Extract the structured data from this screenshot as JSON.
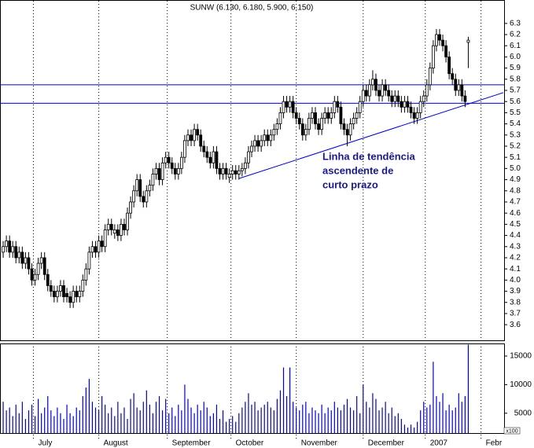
{
  "chart_data": {
    "type": "candlestick",
    "title": "SUNW (6.130, 6.180, 5.900, 6.150)",
    "open": [
      4.25,
      4.3,
      4.35,
      4.25,
      4.3,
      4.2,
      4.25,
      4.15,
      4.2,
      4.1,
      4.0,
      4.05,
      4.15,
      4.2,
      4.05,
      3.95,
      3.9,
      3.85,
      3.9,
      3.95,
      3.88,
      3.85,
      3.8,
      3.9,
      3.85,
      3.9,
      4.0,
      4.1,
      4.25,
      4.3,
      4.25,
      4.35,
      4.3,
      4.45,
      4.5,
      4.42,
      4.45,
      4.4,
      4.5,
      4.45,
      4.6,
      4.7,
      4.8,
      4.9,
      4.75,
      4.7,
      4.8,
      4.85,
      4.95,
      5.0,
      4.9,
      5.05,
      5.1,
      5.05,
      5.0,
      4.95,
      5.0,
      5.1,
      5.25,
      5.3,
      5.25,
      5.35,
      5.3,
      5.2,
      5.15,
      5.1,
      5.05,
      5.15,
      5.0,
      4.95,
      5.0,
      4.92,
      4.95,
      4.98,
      4.95,
      4.98,
      5.0,
      5.05,
      5.15,
      5.2,
      5.25,
      5.2,
      5.25,
      5.3,
      5.25,
      5.3,
      5.35,
      5.4,
      5.5,
      5.6,
      5.55,
      5.6,
      5.5,
      5.45,
      5.4,
      5.3,
      5.35,
      5.45,
      5.5,
      5.4,
      5.35,
      5.45,
      5.5,
      5.45,
      5.5,
      5.6,
      5.55,
      5.4,
      5.35,
      5.3,
      5.4,
      5.45,
      5.5,
      5.6,
      5.7,
      5.65,
      5.75,
      5.8,
      5.7,
      5.65,
      5.75,
      5.7,
      5.65,
      5.6,
      5.65,
      5.6,
      5.55,
      5.6,
      5.55,
      5.5,
      5.45,
      5.5,
      5.6,
      5.65,
      5.75,
      5.9,
      6.1,
      6.2,
      6.15,
      6.1,
      6.0,
      5.85,
      5.8,
      5.7,
      5.75,
      5.65,
      6.13
    ],
    "high": [
      4.35,
      4.4,
      4.4,
      4.35,
      4.35,
      4.3,
      4.3,
      4.25,
      4.25,
      4.15,
      4.1,
      4.2,
      4.25,
      4.25,
      4.1,
      4.0,
      3.95,
      3.95,
      4.0,
      4.0,
      3.93,
      3.9,
      3.95,
      3.95,
      3.95,
      4.05,
      4.15,
      4.3,
      4.35,
      4.35,
      4.4,
      4.4,
      4.5,
      4.55,
      4.55,
      4.5,
      4.5,
      4.55,
      4.55,
      4.65,
      4.75,
      4.85,
      4.95,
      4.95,
      4.8,
      4.85,
      4.9,
      5.0,
      5.05,
      5.05,
      5.1,
      5.15,
      5.15,
      5.1,
      5.05,
      5.05,
      5.15,
      5.3,
      5.35,
      5.35,
      5.4,
      5.4,
      5.35,
      5.25,
      5.2,
      5.15,
      5.2,
      5.2,
      5.05,
      5.05,
      5.05,
      5.0,
      5.03,
      5.03,
      5.03,
      5.05,
      5.1,
      5.2,
      5.25,
      5.3,
      5.3,
      5.3,
      5.35,
      5.35,
      5.35,
      5.4,
      5.45,
      5.55,
      5.65,
      5.65,
      5.65,
      5.65,
      5.55,
      5.5,
      5.45,
      5.4,
      5.5,
      5.55,
      5.55,
      5.45,
      5.5,
      5.55,
      5.55,
      5.55,
      5.65,
      5.65,
      5.6,
      5.45,
      5.4,
      5.45,
      5.5,
      5.55,
      5.65,
      5.75,
      5.75,
      5.8,
      5.88,
      5.85,
      5.75,
      5.8,
      5.8,
      5.75,
      5.7,
      5.7,
      5.7,
      5.65,
      5.65,
      5.65,
      5.6,
      5.55,
      5.55,
      5.65,
      5.7,
      5.8,
      5.95,
      6.15,
      6.25,
      6.25,
      6.2,
      6.15,
      6.05,
      5.9,
      5.85,
      5.8,
      5.8,
      5.7,
      6.18
    ],
    "low": [
      4.2,
      4.25,
      4.2,
      4.2,
      4.15,
      4.15,
      4.1,
      4.1,
      4.05,
      3.95,
      3.95,
      4.0,
      4.1,
      4.0,
      3.9,
      3.85,
      3.8,
      3.8,
      3.85,
      3.8,
      3.8,
      3.75,
      3.75,
      3.8,
      3.8,
      3.85,
      3.95,
      4.05,
      4.2,
      4.2,
      4.2,
      4.25,
      4.25,
      4.4,
      4.4,
      4.37,
      4.35,
      4.35,
      4.4,
      4.4,
      4.55,
      4.65,
      4.75,
      4.7,
      4.65,
      4.65,
      4.75,
      4.8,
      4.9,
      4.85,
      4.85,
      5.0,
      5.0,
      4.95,
      4.9,
      4.9,
      4.95,
      5.05,
      5.2,
      5.2,
      5.2,
      5.25,
      5.15,
      5.1,
      5.05,
      5.0,
      5.0,
      4.95,
      4.9,
      4.9,
      4.9,
      4.87,
      4.9,
      4.9,
      4.9,
      4.93,
      4.95,
      5.0,
      5.1,
      5.15,
      5.15,
      5.15,
      5.2,
      5.2,
      5.2,
      5.25,
      5.3,
      5.35,
      5.45,
      5.5,
      5.5,
      5.45,
      5.4,
      5.35,
      5.25,
      5.25,
      5.3,
      5.4,
      5.35,
      5.3,
      5.3,
      5.4,
      5.4,
      5.4,
      5.45,
      5.5,
      5.35,
      5.3,
      5.2,
      5.25,
      5.35,
      5.4,
      5.45,
      5.55,
      5.6,
      5.6,
      5.7,
      5.65,
      5.6,
      5.6,
      5.65,
      5.6,
      5.55,
      5.55,
      5.55,
      5.5,
      5.5,
      5.5,
      5.45,
      5.4,
      5.4,
      5.45,
      5.55,
      5.6,
      5.7,
      5.85,
      6.05,
      6.1,
      6.05,
      5.95,
      5.8,
      5.75,
      5.65,
      5.65,
      5.6,
      5.55,
      5.9
    ],
    "close": [
      4.3,
      4.35,
      4.25,
      4.3,
      4.2,
      4.25,
      4.15,
      4.2,
      4.1,
      4.0,
      4.05,
      4.15,
      4.2,
      4.05,
      3.95,
      3.9,
      3.85,
      3.9,
      3.95,
      3.85,
      3.85,
      3.8,
      3.9,
      3.85,
      3.9,
      4.0,
      4.1,
      4.25,
      4.3,
      4.25,
      4.35,
      4.3,
      4.45,
      4.5,
      4.45,
      4.45,
      4.4,
      4.5,
      4.45,
      4.6,
      4.7,
      4.8,
      4.9,
      4.75,
      4.7,
      4.8,
      4.85,
      4.95,
      5.0,
      4.9,
      5.05,
      5.1,
      5.05,
      5.0,
      4.95,
      5.0,
      5.1,
      5.25,
      5.3,
      5.25,
      5.35,
      5.3,
      5.2,
      5.15,
      5.1,
      5.05,
      5.15,
      5.0,
      4.95,
      5.0,
      4.95,
      4.95,
      4.98,
      4.95,
      4.98,
      5.0,
      5.05,
      5.15,
      5.2,
      5.25,
      5.2,
      5.25,
      5.3,
      5.25,
      5.3,
      5.35,
      5.4,
      5.5,
      5.6,
      5.55,
      5.6,
      5.5,
      5.45,
      5.4,
      5.3,
      5.35,
      5.45,
      5.5,
      5.4,
      5.35,
      5.45,
      5.5,
      5.45,
      5.5,
      5.6,
      5.55,
      5.4,
      5.35,
      5.3,
      5.4,
      5.45,
      5.5,
      5.6,
      5.7,
      5.65,
      5.75,
      5.8,
      5.7,
      5.65,
      5.75,
      5.7,
      5.65,
      5.6,
      5.65,
      5.6,
      5.55,
      5.6,
      5.55,
      5.5,
      5.45,
      5.5,
      5.6,
      5.65,
      5.75,
      5.9,
      6.1,
      6.2,
      6.15,
      6.1,
      6.0,
      5.85,
      5.8,
      5.7,
      5.75,
      5.65,
      5.6,
      6.15
    ],
    "volume": [
      7000,
      5500,
      6000,
      4500,
      6500,
      5000,
      7000,
      4000,
      5500,
      6500,
      4500,
      7500,
      5000,
      6000,
      8000,
      5500,
      4500,
      6000,
      5000,
      4000,
      6500,
      5000,
      4500,
      6000,
      5500,
      8000,
      9500,
      11000,
      7000,
      6000,
      5500,
      8000,
      6500,
      5000,
      6000,
      4500,
      7000,
      5000,
      6000,
      4000,
      7500,
      8500,
      6000,
      5500,
      7000,
      9000,
      6500,
      5000,
      7000,
      8000,
      5500,
      7500,
      5000,
      6000,
      4500,
      6500,
      5500,
      10000,
      7500,
      6000,
      5000,
      6500,
      5500,
      7000,
      6000,
      4500,
      5000,
      6500,
      4000,
      5500,
      3500,
      4000,
      4500,
      3500,
      5000,
      6000,
      7000,
      8500,
      6500,
      7000,
      5500,
      6000,
      6500,
      7000,
      6000,
      5500,
      7500,
      9000,
      13000,
      8000,
      13000,
      7000,
      6000,
      5500,
      6500,
      7000,
      5000,
      6000,
      5500,
      5000,
      6500,
      5000,
      6000,
      5500,
      7000,
      6000,
      5500,
      6500,
      7500,
      6000,
      5500,
      8000,
      5000,
      10000,
      7000,
      6000,
      8500,
      7500,
      5500,
      6000,
      7000,
      5000,
      6000,
      4500,
      5000,
      4000,
      3000,
      2500,
      3000,
      2500,
      3500,
      5500,
      7000,
      6000,
      6500,
      14000,
      8000,
      7000,
      8500,
      5500,
      6500,
      5500,
      6000,
      8500,
      7000,
      8000,
      17000
    ],
    "up_color": "#ffffff",
    "down_color": "#000000",
    "volume_color": "#0000cc",
    "line_color": "#0000cc",
    "xlim": [
      -1,
      157
    ],
    "xticks": [
      {
        "value": 9.5,
        "label": "July"
      },
      {
        "value": 30,
        "label": "August"
      },
      {
        "value": 51.5,
        "label": "September"
      },
      {
        "value": 71.5,
        "label": "October"
      },
      {
        "value": 92,
        "label": "November"
      },
      {
        "value": 113,
        "label": "December"
      },
      {
        "value": 132.5,
        "label": "2007"
      },
      {
        "value": 150,
        "label": "Febr"
      }
    ],
    "ylim": [
      3.46,
      6.51
    ],
    "yticks": [
      3.6,
      3.7,
      3.8,
      3.9,
      {
        "value": 4,
        "label": "4.0"
      },
      4.1,
      4.2,
      4.3,
      4.4,
      4.5,
      4.6,
      4.7,
      4.8,
      4.9,
      {
        "value": 5,
        "label": "5.0"
      },
      5.1,
      5.2,
      5.3,
      5.4,
      5.5,
      5.6,
      5.7,
      5.8,
      5.9,
      {
        "value": 6,
        "label": "6.0"
      },
      6.1,
      6.2,
      6.3
    ],
    "y2lim": [
      1528,
      17200
    ],
    "y2ticks": [
      5000,
      10000,
      15000
    ],
    "y2label": "x100",
    "hlines": [
      5.75,
      5.585
    ],
    "trendline": {
      "x": [
        74,
        157
      ],
      "y": [
        4.91,
        5.68
      ]
    },
    "annotation": [
      "Linha de tendência",
      "ascendente de",
      "curto prazo"
    ]
  }
}
